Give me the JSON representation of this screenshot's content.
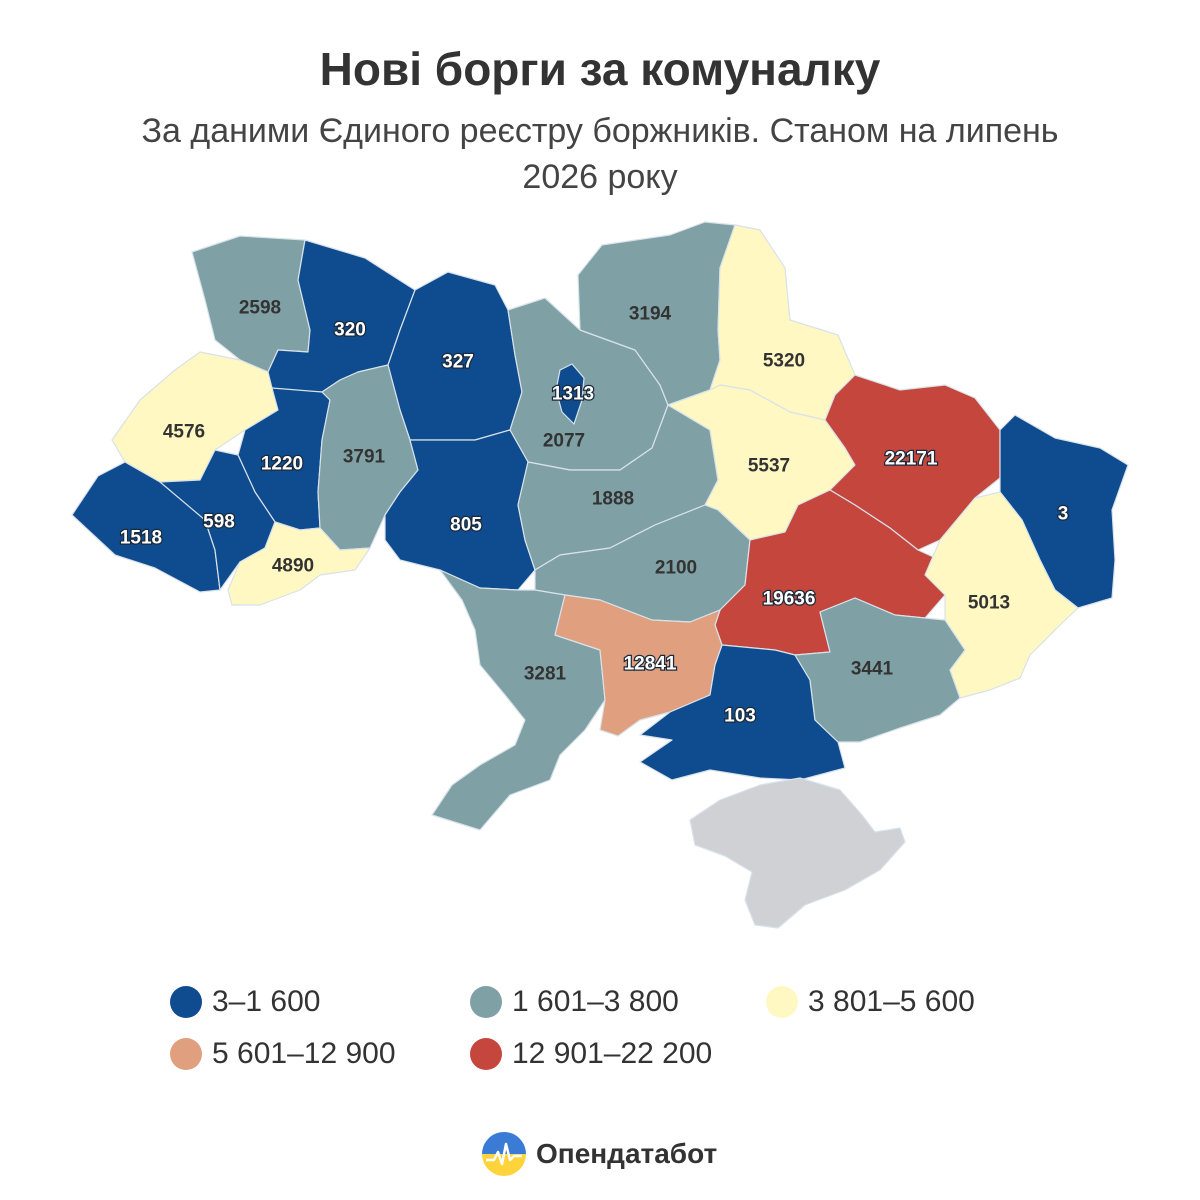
{
  "header": {
    "title": "Нові борги за комуналку",
    "subtitle": "За даними Єдиного реєстру боржників. Станом на липень 2026 року"
  },
  "colors": {
    "bin1": "#0f4c8f",
    "bin2": "#7fa1a5",
    "bin3": "#fff8c2",
    "bin4": "#e0a080",
    "bin5": "#c5463d",
    "crimea": "#cfd1d4",
    "label_dark": "#333333",
    "label_light": "#ffffff"
  },
  "legend": [
    {
      "label": "3–1 600",
      "color": "#0f4c8f"
    },
    {
      "label": "1 601–3 800",
      "color": "#7fa1a5"
    },
    {
      "label": "3 801–5 600",
      "color": "#fff8c2"
    },
    {
      "label": "5 601–12 900",
      "color": "#e0a080"
    },
    {
      "label": "12 901–22 200",
      "color": "#c5463d"
    }
  ],
  "regions": [
    {
      "name": "volyn",
      "value": "2598",
      "bin": 2
    },
    {
      "name": "rivne",
      "value": "320",
      "bin": 1
    },
    {
      "name": "zhytomyr",
      "value": "327",
      "bin": 1
    },
    {
      "name": "kyiv-city",
      "value": "1313",
      "bin": 1
    },
    {
      "name": "kyiv-oblast",
      "value": "2077",
      "bin": 2
    },
    {
      "name": "chernihiv",
      "value": "3194",
      "bin": 2
    },
    {
      "name": "sumy",
      "value": "5320",
      "bin": 3
    },
    {
      "name": "lviv",
      "value": "4576",
      "bin": 3
    },
    {
      "name": "ternopil",
      "value": "1220",
      "bin": 1
    },
    {
      "name": "khmelnytskyi",
      "value": "3791",
      "bin": 2
    },
    {
      "name": "vinnytsia",
      "value": "805",
      "bin": 1
    },
    {
      "name": "cherkasy",
      "value": "1888",
      "bin": 2
    },
    {
      "name": "poltava",
      "value": "5537",
      "bin": 3
    },
    {
      "name": "kharkiv",
      "value": "22171",
      "bin": 5
    },
    {
      "name": "luhansk",
      "value": "3",
      "bin": 1
    },
    {
      "name": "zakarpattia",
      "value": "1518",
      "bin": 1
    },
    {
      "name": "ivano-frankivsk",
      "value": "598",
      "bin": 1
    },
    {
      "name": "chernivtsi",
      "value": "4890",
      "bin": 3
    },
    {
      "name": "kirovohrad",
      "value": "2100",
      "bin": 2
    },
    {
      "name": "dnipropetrovsk",
      "value": "19636",
      "bin": 5
    },
    {
      "name": "donetsk",
      "value": "5013",
      "bin": 3
    },
    {
      "name": "odesa",
      "value": "3281",
      "bin": 2
    },
    {
      "name": "mykolaiv",
      "value": "12841",
      "bin": 4
    },
    {
      "name": "kherson",
      "value": "103",
      "bin": 1
    },
    {
      "name": "zaporizhzhia",
      "value": "3441",
      "bin": 2
    }
  ],
  "brand": {
    "name": "Опендатабот"
  }
}
